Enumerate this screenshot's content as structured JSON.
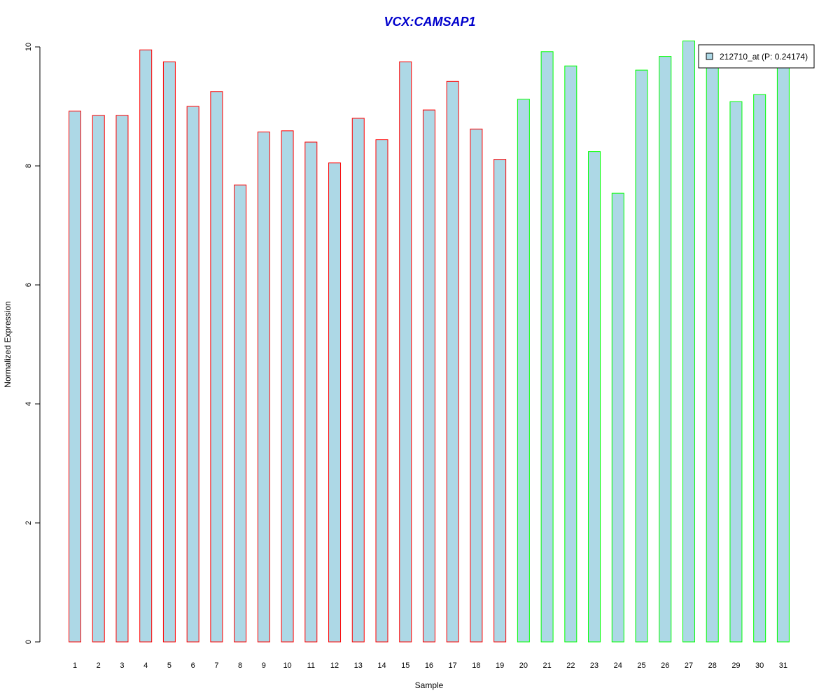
{
  "chart_data": {
    "type": "bar",
    "title": "VCX:CAMSAP1",
    "xlabel": "Sample",
    "ylabel": "Normalized Expression",
    "ylim": [
      0,
      10
    ],
    "y_ticks": [
      0,
      2,
      4,
      6,
      8,
      10
    ],
    "y_tick_labels": [
      "0",
      "2",
      "4",
      "6",
      "8",
      "10"
    ],
    "grid": false,
    "legend_position": "top-right",
    "categories": [
      "1",
      "2",
      "3",
      "4",
      "5",
      "6",
      "7",
      "8",
      "9",
      "10",
      "11",
      "12",
      "13",
      "14",
      "15",
      "16",
      "17",
      "18",
      "19",
      "20",
      "21",
      "22",
      "23",
      "24",
      "25",
      "26",
      "27",
      "28",
      "29",
      "30",
      "31"
    ],
    "series": [
      {
        "name": "212710_at (P: 0.24174)",
        "values": [
          8.92,
          8.85,
          8.85,
          9.95,
          9.75,
          9.0,
          9.25,
          7.68,
          8.57,
          8.59,
          8.4,
          8.05,
          8.8,
          8.44,
          9.75,
          8.94,
          9.42,
          8.62,
          8.11,
          9.12,
          9.92,
          9.68,
          8.24,
          7.54,
          9.61,
          9.84,
          10.1,
          9.7,
          9.08,
          9.2,
          9.75
        ],
        "fill_color": "#add8e6"
      }
    ],
    "groups": [
      {
        "from": 1,
        "to": 19,
        "border_color": "#ff0000"
      },
      {
        "from": 20,
        "to": 31,
        "border_color": "#00ff00"
      }
    ],
    "colors": {
      "title": "#0000cc",
      "axis": "#000000",
      "legend_border": "#000000"
    }
  }
}
